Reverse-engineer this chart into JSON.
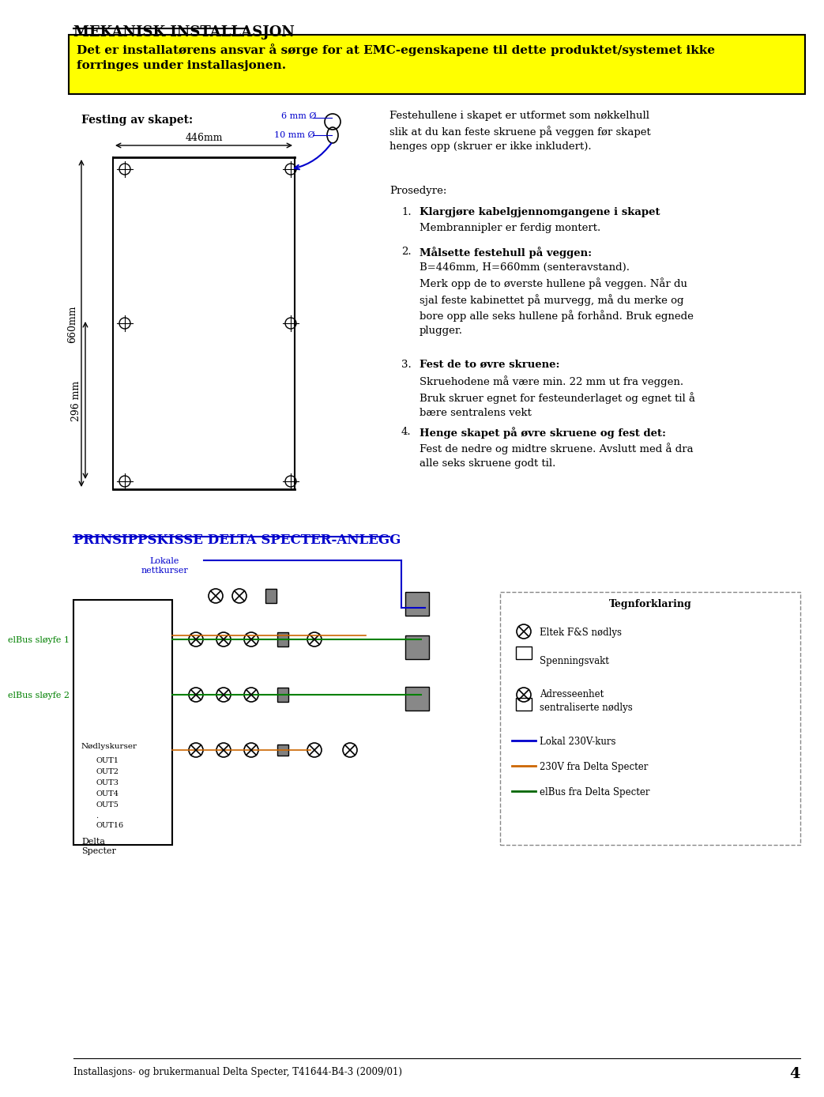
{
  "title": "MEKANISK INSTALLASJON",
  "warning_text": "Det er installatørens ansvar å sørge for at EMC-egenskapene til dette produktet/systemet ikke\nforringes under installasjonen.",
  "festing_label": "Festing av skapet:",
  "dim_446": "446mm",
  "dim_660": "660mm",
  "dim_296": "296 mm",
  "dim_6mm": "6 mm Ø",
  "dim_10mm": "10 mm Ø",
  "right_text_1": "Festehullene i skapet er utformet som nøkkelhull\nslik at du kan feste skruene på veggen før skapet\nhenges opp (skruer er ikke inkludert).",
  "prosedyre": "Prosedyre:",
  "step1_title": "Klargjøre kabelgjennomgangene i skapet",
  "step1_text": "Membrannipler er ferdig montert.",
  "step2_title": "Målsette festehull på veggen:",
  "step2_text": "B=446mm, H=660mm (senteravstand).\nMerk opp de to øverste hullene på veggen. Når du\nsjal feste kabinettet på murvegg, må du merke og\nbore opp alle seks hullene på forhånd. Bruk egnede\nplugger.",
  "step3_title": "Fest de to øvre skruene:",
  "step3_text": "Skruehodene må være min. 22 mm ut fra veggen.\nBruk skruer egnet for festeunderlaget og egnet til å\nbære sentralens vekt",
  "step4_title": "Henge skapet på øvre skruene og fest det:",
  "step4_text": "Fest de nedre og midtre skruene. Avslutt med å dra\nalle seks skruene godt til.",
  "section2_title": "PRINSIPPSKISSE DELTA SPECTER-ANLEGG",
  "label_elbus1": "elBus sløyfe 1",
  "label_elbus2": "elBus sløyfe 2",
  "label_nodlys": "Nødlyskurser\nOUT1\nOUT2\nOUT3\nOUT4\nOUT5\n.\nOUT16",
  "label_delta": "Delta\nSpecter",
  "label_lokale": "Lokale\nnettkurser",
  "legend_title": "Tegnforklaring",
  "legend_1": "Eltek F&S nødlys",
  "legend_2": "Spenningsvakt",
  "legend_3": "Adresseenhet\nsentraliserte nødlys",
  "legend_4": "Lokal 230V-kurs",
  "legend_5": "230V fra Delta Specter",
  "legend_6": "elBus fra Delta Specter",
  "footer": "Installasjons- og brukermanual Delta Specter, T41644-B4-3 (2009/01)",
  "page_num": "4",
  "bg_color": "#ffffff",
  "warning_bg": "#ffff00",
  "line_color": "#000000",
  "blue_color": "#0000cc",
  "orange_color": "#cc6600",
  "green_color": "#006600"
}
